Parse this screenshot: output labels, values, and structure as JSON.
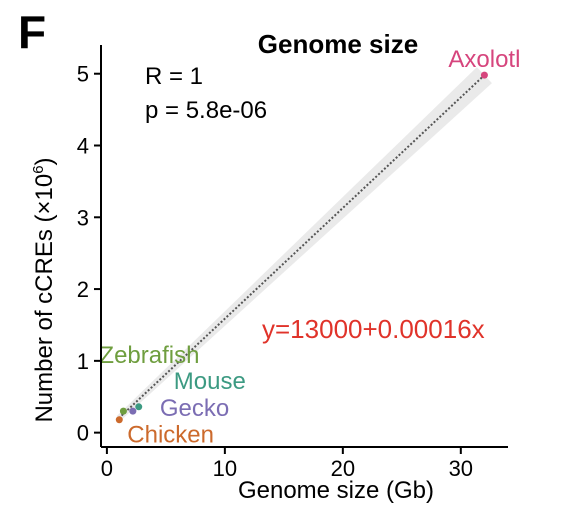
{
  "panel_label": "F",
  "chart_data": {
    "type": "scatter",
    "title": "Genome size",
    "xlabel": "Genome size (Gb)",
    "ylabel_main": "Number of cCREs (×10",
    "ylabel_sup": "6",
    "ylabel_end": ")",
    "xlim": [
      -0.5,
      34
    ],
    "ylim": [
      -0.2,
      5.4
    ],
    "xticks": [
      0,
      10,
      20,
      30
    ],
    "yticks": [
      0,
      1,
      2,
      3,
      4,
      5
    ],
    "stats": {
      "r": "R = 1",
      "p": "p = 5.8e-06"
    },
    "equation": "y=13000+0.00016x",
    "equation_color": "#e0332a",
    "fit": {
      "x": [
        1.0,
        32.0
      ],
      "y": [
        0.2,
        4.98
      ]
    },
    "points": [
      {
        "name": "Axolotl",
        "x": 32.0,
        "y": 4.98,
        "color": "#d6457d"
      },
      {
        "name": "Zebrafish",
        "x": 1.4,
        "y": 0.3,
        "color": "#6f9e3f"
      },
      {
        "name": "Mouse",
        "x": 2.7,
        "y": 0.36,
        "color": "#3c9a82"
      },
      {
        "name": "Gecko",
        "x": 2.2,
        "y": 0.3,
        "color": "#7b6db3"
      },
      {
        "name": "Chicken",
        "x": 1.05,
        "y": 0.18,
        "color": "#cc6a2c"
      }
    ]
  }
}
